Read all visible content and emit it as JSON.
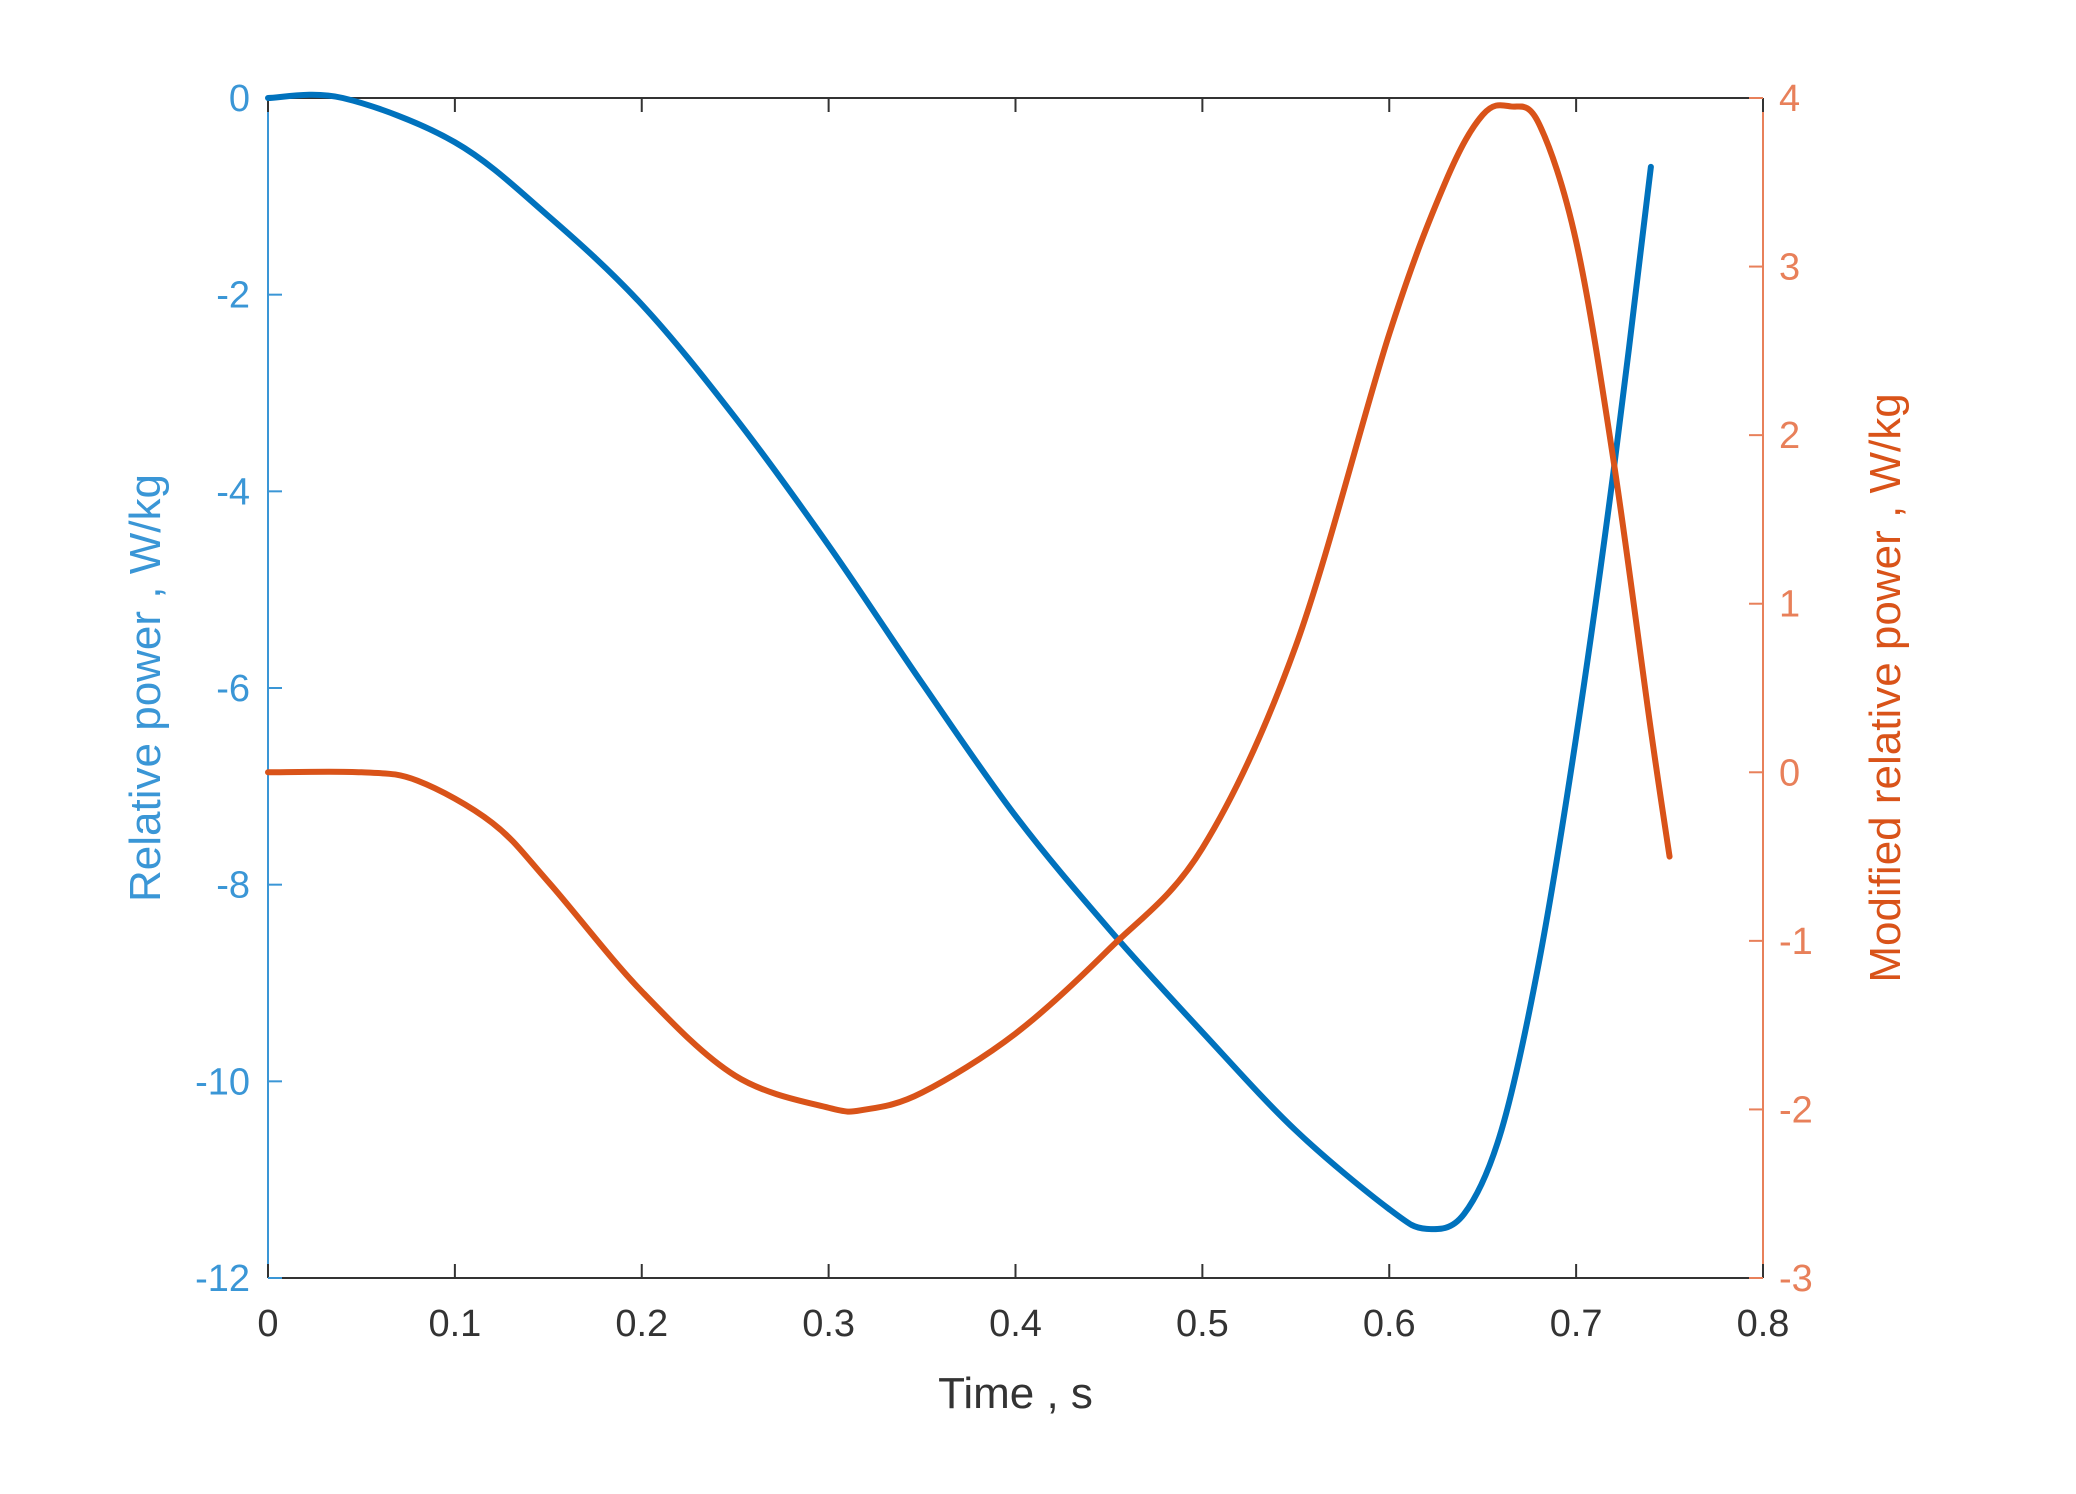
{
  "chart_data": {
    "type": "line",
    "xlabel": "Time , s",
    "ylabel_left": "Relative power , W/kg",
    "ylabel_right": "Modified relative power , W/kg",
    "xlim": [
      0,
      0.8
    ],
    "ylim_left": [
      -12,
      0
    ],
    "ylim_right": [
      -3,
      4
    ],
    "x_ticks": [
      0,
      0.1,
      0.2,
      0.3,
      0.4,
      0.5,
      0.6,
      0.7,
      0.8
    ],
    "x_tick_labels": [
      "0",
      "0.1",
      "0.2",
      "0.3",
      "0.4",
      "0.5",
      "0.6",
      "0.7",
      "0.8"
    ],
    "y_left_ticks": [
      0,
      -2,
      -4,
      -6,
      -8,
      -10,
      -12
    ],
    "y_left_tick_labels": [
      "0",
      "-2",
      "-4",
      "-6",
      "-8",
      "-10",
      "-12"
    ],
    "y_right_ticks": [
      4,
      3,
      2,
      1,
      0,
      -1,
      -2,
      -3
    ],
    "y_right_tick_labels": [
      "4",
      "3",
      "2",
      "1",
      "0",
      "-1",
      "-2",
      "-3"
    ],
    "grid": false,
    "colors": {
      "left": "#0072BD",
      "right": "#D95319",
      "left_axis": "#3a96d6",
      "right_axis": "#e8805a",
      "x_axis": "#333333"
    },
    "series": [
      {
        "axis": "left",
        "color": "#0072BD",
        "x": [
          0,
          0.04,
          0.1,
          0.15,
          0.2,
          0.25,
          0.3,
          0.35,
          0.4,
          0.45,
          0.5,
          0.55,
          0.6,
          0.62,
          0.64,
          0.66,
          0.68,
          0.7,
          0.72,
          0.74
        ],
        "y": [
          0,
          0,
          -0.45,
          -1.2,
          -2.1,
          -3.25,
          -4.55,
          -5.95,
          -7.3,
          -8.45,
          -9.5,
          -10.5,
          -11.3,
          -11.5,
          -11.35,
          -10.5,
          -8.8,
          -6.5,
          -3.8,
          -0.7
        ]
      },
      {
        "axis": "right",
        "color": "#D95319",
        "x": [
          0,
          0.05,
          0.08,
          0.12,
          0.15,
          0.2,
          0.25,
          0.3,
          0.32,
          0.35,
          0.4,
          0.45,
          0.5,
          0.55,
          0.6,
          0.63,
          0.65,
          0.665,
          0.68,
          0.7,
          0.72,
          0.74,
          0.75
        ],
        "y": [
          0,
          0,
          -0.05,
          -0.3,
          -0.65,
          -1.3,
          -1.8,
          -1.99,
          -2.0,
          -1.9,
          -1.55,
          -1.05,
          -0.45,
          0.75,
          2.6,
          3.5,
          3.9,
          3.95,
          3.85,
          3.15,
          1.85,
          0.25,
          -0.5
        ]
      }
    ]
  }
}
